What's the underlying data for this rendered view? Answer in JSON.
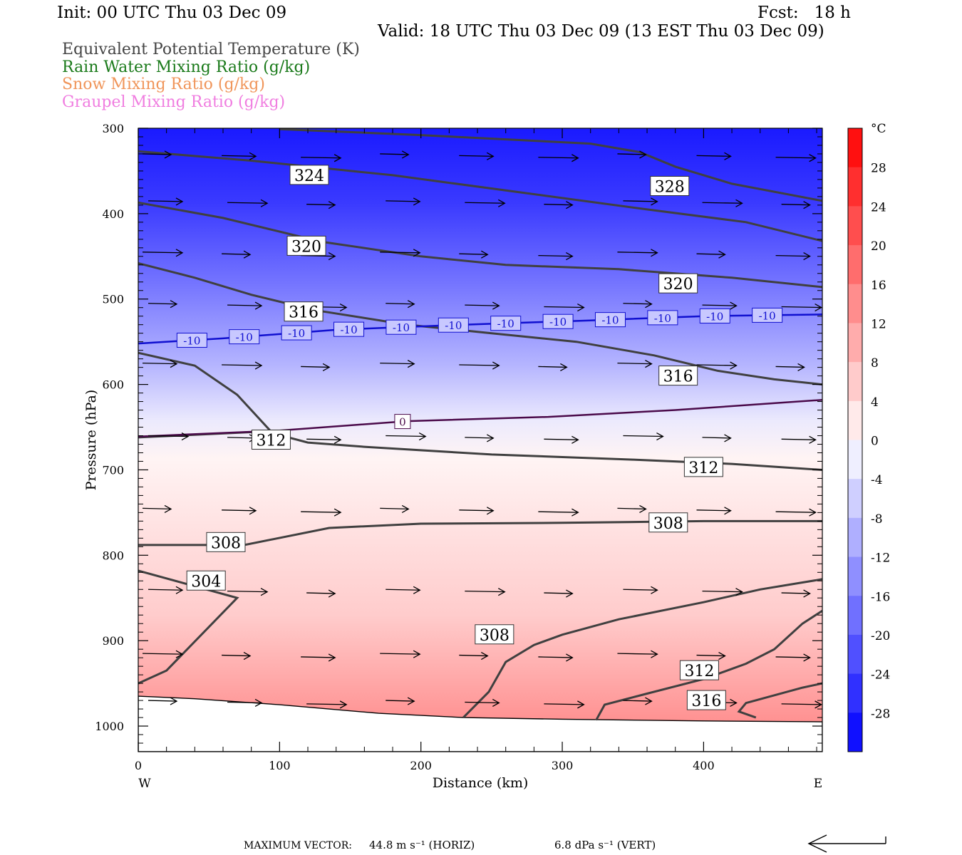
{
  "header": {
    "init": "Init: 00 UTC Thu 03 Dec 09",
    "fcst": "Fcst:   18 h",
    "valid": "Valid: 18 UTC Thu 03 Dec 09 (13 EST Thu 03 Dec 09)"
  },
  "legend": [
    {
      "label": "Equivalent Potential Temperature (K)",
      "color": "#444444"
    },
    {
      "label": "Rain Water Mixing Ratio (g/kg)",
      "color": "#1a7a1a"
    },
    {
      "label": "Snow Mixing Ratio (g/kg)",
      "color": "#f0955a"
    },
    {
      "label": "Graupel Mixing Ratio (g/kg)",
      "color": "#f07ee0"
    }
  ],
  "chart_data": {
    "type": "cross-section",
    "xlabel": "Distance (km)",
    "ylabel": "Pressure (hPa)",
    "xlim": [
      0,
      484
    ],
    "ylim": [
      1030,
      300
    ],
    "x_ticks": [
      0,
      100,
      200,
      300,
      400
    ],
    "y_ticks": [
      300,
      400,
      500,
      600,
      700,
      800,
      900,
      1000
    ],
    "x_ends": {
      "left": "W",
      "right": "E"
    },
    "colorbar": {
      "unit": "°C",
      "range": [
        -32,
        32
      ],
      "ticks": [
        28,
        24,
        20,
        16,
        12,
        8,
        4,
        0,
        -4,
        -8,
        -12,
        -16,
        -20,
        -24,
        -28
      ]
    },
    "theta_e_contours": [
      {
        "label": "304",
        "points": [
          [
            0,
            818
          ],
          [
            70,
            850
          ],
          [
            20,
            935
          ],
          [
            0,
            950
          ]
        ]
      },
      {
        "label": "308",
        "points": [
          [
            0,
            788
          ],
          [
            75,
            788
          ],
          [
            135,
            768
          ],
          [
            200,
            763
          ],
          [
            300,
            762
          ],
          [
            400,
            760
          ],
          [
            484,
            760
          ]
        ]
      },
      {
        "label": "308",
        "points": [
          [
            230,
            990
          ],
          [
            248,
            960
          ],
          [
            260,
            925
          ],
          [
            280,
            905
          ],
          [
            300,
            893
          ],
          [
            340,
            875
          ],
          [
            400,
            855
          ],
          [
            440,
            840
          ],
          [
            484,
            828
          ]
        ]
      },
      {
        "label": "312",
        "points": [
          [
            0,
            662
          ],
          [
            90,
            655
          ],
          [
            120,
            668
          ],
          [
            160,
            673
          ],
          [
            250,
            682
          ],
          [
            350,
            688
          ],
          [
            420,
            693
          ],
          [
            484,
            700
          ]
        ]
      },
      {
        "label": "312",
        "points": [
          [
            324,
            993
          ],
          [
            330,
            975
          ],
          [
            360,
            962
          ],
          [
            400,
            945
          ],
          [
            430,
            927
          ],
          [
            450,
            910
          ],
          [
            470,
            880
          ],
          [
            484,
            865
          ]
        ]
      },
      {
        "label": "316",
        "points": [
          [
            0,
            563
          ],
          [
            40,
            578
          ],
          [
            70,
            612
          ],
          [
            95,
            657
          ]
        ]
      },
      {
        "label": "316",
        "points": [
          [
            0,
            458
          ],
          [
            40,
            475
          ],
          [
            80,
            495
          ],
          [
            125,
            513
          ],
          [
            190,
            530
          ],
          [
            250,
            540
          ],
          [
            310,
            550
          ],
          [
            365,
            566
          ],
          [
            410,
            584
          ],
          [
            450,
            594
          ],
          [
            484,
            600
          ]
        ]
      },
      {
        "label": "316",
        "points": [
          [
            437,
            990
          ],
          [
            425,
            983
          ],
          [
            430,
            973
          ],
          [
            470,
            955
          ],
          [
            484,
            950
          ]
        ]
      },
      {
        "label": "320",
        "points": [
          [
            0,
            387
          ],
          [
            60,
            405
          ],
          [
            130,
            433
          ],
          [
            200,
            450
          ],
          [
            260,
            460
          ],
          [
            340,
            465
          ],
          [
            420,
            475
          ],
          [
            484,
            486
          ]
        ]
      },
      {
        "label": "324",
        "points": [
          [
            0,
            327
          ],
          [
            80,
            338
          ],
          [
            180,
            355
          ],
          [
            270,
            375
          ],
          [
            360,
            395
          ],
          [
            430,
            410
          ],
          [
            484,
            432
          ]
        ]
      },
      {
        "label": "328",
        "points": [
          [
            100,
            301
          ],
          [
            200,
            308
          ],
          [
            320,
            318
          ],
          [
            355,
            328
          ],
          [
            380,
            345
          ],
          [
            420,
            365
          ],
          [
            484,
            385
          ]
        ]
      }
    ],
    "temp_contours": [
      {
        "label": "-10",
        "points": [
          [
            0,
            552
          ],
          [
            60,
            546
          ],
          [
            140,
            536
          ],
          [
            230,
            530
          ],
          [
            320,
            525
          ],
          [
            400,
            520
          ],
          [
            484,
            518
          ]
        ]
      },
      {
        "label": "0",
        "points": [
          [
            0,
            661
          ],
          [
            100,
            654
          ],
          [
            190,
            643
          ],
          [
            290,
            638
          ],
          [
            380,
            630
          ],
          [
            484,
            618
          ]
        ]
      }
    ],
    "max_vector": {
      "label": "MAXIMUM VECTOR:",
      "horiz": "44.8 m s⁻¹ (HORIZ)",
      "vert": "6.8 dPa s⁻¹ (VERT)"
    }
  }
}
